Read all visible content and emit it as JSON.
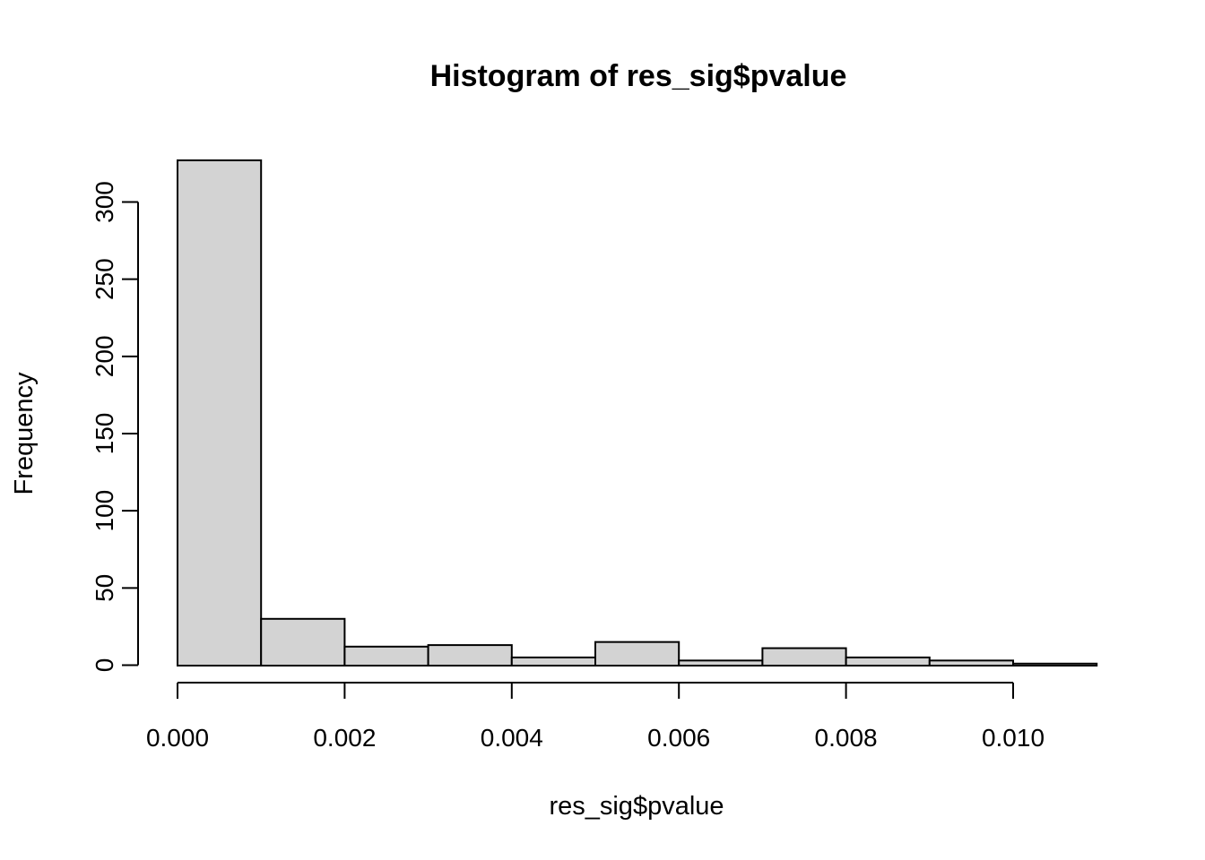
{
  "chart_data": {
    "type": "bar",
    "subtype": "histogram",
    "title": "Histogram of res_sig$pvalue",
    "xlabel": "res_sig$pvalue",
    "ylabel": "Frequency",
    "bin_edges": [
      0.0,
      0.001,
      0.002,
      0.003,
      0.004,
      0.005,
      0.006,
      0.007,
      0.008,
      0.009,
      0.01,
      0.011
    ],
    "counts": [
      327,
      30,
      12,
      13,
      5,
      15,
      3,
      11,
      5,
      3,
      1
    ],
    "x_ticks": [
      0.0,
      0.002,
      0.004,
      0.006,
      0.008,
      0.01
    ],
    "x_tick_labels": [
      "0.000",
      "0.002",
      "0.004",
      "0.006",
      "0.008",
      "0.010"
    ],
    "y_ticks": [
      0,
      50,
      100,
      150,
      200,
      250,
      300
    ],
    "y_tick_labels": [
      "0",
      "50",
      "100",
      "150",
      "200",
      "250",
      "300"
    ],
    "xlim": [
      0,
      0.011
    ],
    "ylim": [
      0,
      327
    ],
    "grid": false,
    "legend": null,
    "colors": {
      "bar_fill": "#d3d3d3",
      "bar_stroke": "#000000",
      "axis_stroke": "#000000",
      "background": "#ffffff"
    }
  }
}
